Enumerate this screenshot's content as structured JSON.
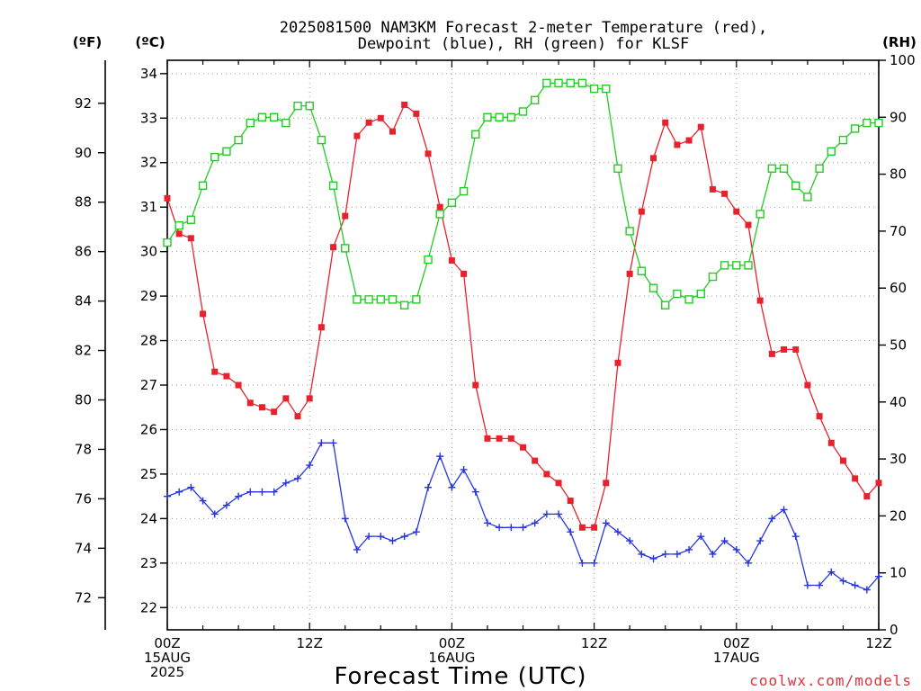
{
  "chart_data": {
    "type": "line",
    "title_lines": [
      "2025081500 NAM3KM Forecast 2-meter Temperature (red),",
      "Dewpoint (blue), RH (green) for KLSF"
    ],
    "units": {
      "fahrenheit": "(ºF)",
      "celsius": "(ºC)",
      "rh": "(RH)"
    },
    "xlabel": "Forecast Time (UTC)",
    "credit": "coolwx.com/models",
    "x_unit": "forecast hour (from 2025-08-15 00Z)",
    "xlim": [
      0,
      60
    ],
    "x_ticks": [
      {
        "x": 0,
        "lines": [
          "00Z",
          "15AUG",
          "2025"
        ]
      },
      {
        "x": 12,
        "lines": [
          "12Z"
        ]
      },
      {
        "x": 24,
        "lines": [
          "00Z",
          "16AUG"
        ]
      },
      {
        "x": 36,
        "lines": [
          "12Z"
        ]
      },
      {
        "x": 48,
        "lines": [
          "00Z",
          "17AUG"
        ]
      },
      {
        "x": 60,
        "lines": [
          "12Z"
        ]
      }
    ],
    "y_left_c": {
      "ylim": [
        21.5,
        34.3
      ],
      "ticks": [
        22,
        23,
        24,
        25,
        26,
        27,
        28,
        29,
        30,
        31,
        32,
        33,
        34
      ]
    },
    "y_left_f": {
      "ticks": [
        72,
        74,
        76,
        78,
        80,
        82,
        84,
        86,
        88,
        90,
        92
      ]
    },
    "y_right_rh": {
      "ylim": [
        0,
        100
      ],
      "ticks": [
        0,
        10,
        20,
        30,
        40,
        50,
        60,
        70,
        80,
        90,
        100
      ]
    },
    "grid": true,
    "series": [
      {
        "name": "2-meter Temperature",
        "color": "#e8222c",
        "axis": "celsius",
        "marker": "filled-square",
        "x": [
          0,
          1,
          2,
          3,
          4,
          5,
          6,
          7,
          8,
          9,
          10,
          11,
          12,
          13,
          14,
          15,
          16,
          17,
          18,
          19,
          20,
          21,
          22,
          23,
          24,
          25,
          26,
          27,
          28,
          29,
          30,
          31,
          32,
          33,
          34,
          35,
          36,
          37,
          38,
          39,
          40,
          41,
          42,
          43,
          44,
          45,
          46,
          47,
          48,
          49,
          50,
          51,
          52,
          53,
          54,
          55,
          56,
          57,
          58,
          59,
          60
        ],
        "values": [
          31.2,
          30.4,
          30.3,
          28.6,
          27.3,
          27.2,
          27.0,
          26.6,
          26.5,
          26.4,
          26.7,
          26.3,
          26.7,
          28.3,
          30.1,
          30.8,
          32.6,
          32.9,
          33.0,
          32.7,
          33.3,
          33.1,
          32.2,
          31.0,
          29.8,
          29.5,
          27.0,
          25.8,
          25.8,
          25.8,
          25.6,
          25.3,
          25.0,
          24.8,
          24.4,
          23.8,
          23.8,
          24.8,
          27.5,
          29.5,
          30.9,
          32.1,
          32.9,
          32.4,
          32.5,
          32.8,
          31.4,
          31.3,
          30.9,
          30.6,
          28.9,
          27.7,
          27.8,
          27.8,
          27.0,
          26.3,
          25.7,
          25.3,
          24.9,
          24.5,
          24.8
        ]
      },
      {
        "name": "Dewpoint",
        "color": "#2635e0",
        "axis": "celsius",
        "marker": "plus",
        "x": [
          0,
          1,
          2,
          3,
          4,
          5,
          6,
          7,
          8,
          9,
          10,
          11,
          12,
          13,
          14,
          15,
          16,
          17,
          18,
          19,
          20,
          21,
          22,
          23,
          24,
          25,
          26,
          27,
          28,
          29,
          30,
          31,
          32,
          33,
          34,
          35,
          36,
          37,
          38,
          39,
          40,
          41,
          42,
          43,
          44,
          45,
          46,
          47,
          48,
          49,
          50,
          51,
          52,
          53,
          54,
          55,
          56,
          57,
          58,
          59,
          60
        ],
        "values": [
          24.5,
          24.6,
          24.7,
          24.4,
          24.1,
          24.3,
          24.5,
          24.6,
          24.6,
          24.6,
          24.8,
          24.9,
          25.2,
          25.7,
          25.7,
          24.0,
          23.3,
          23.6,
          23.6,
          23.5,
          23.6,
          23.7,
          24.7,
          25.4,
          24.7,
          25.1,
          24.6,
          23.9,
          23.8,
          23.8,
          23.8,
          23.9,
          24.1,
          24.1,
          23.7,
          23.0,
          23.0,
          23.9,
          23.7,
          23.5,
          23.2,
          23.1,
          23.2,
          23.2,
          23.3,
          23.6,
          23.2,
          23.5,
          23.3,
          23.0,
          23.5,
          24.0,
          24.2,
          23.6,
          22.5,
          22.5,
          22.8,
          22.6,
          22.5,
          22.4,
          22.7
        ]
      },
      {
        "name": "RH",
        "color": "#22cc22",
        "axis": "rh",
        "marker": "open-square",
        "x": [
          0,
          1,
          2,
          3,
          4,
          5,
          6,
          7,
          8,
          9,
          10,
          11,
          12,
          13,
          14,
          15,
          16,
          17,
          18,
          19,
          20,
          21,
          22,
          23,
          24,
          25,
          26,
          27,
          28,
          29,
          30,
          31,
          32,
          33,
          34,
          35,
          36,
          37,
          38,
          39,
          40,
          41,
          42,
          43,
          44,
          45,
          46,
          47,
          48,
          49,
          50,
          51,
          52,
          53,
          54,
          55,
          56,
          57,
          58,
          59,
          60
        ],
        "values": [
          68,
          71,
          72,
          78,
          83,
          84,
          86,
          89,
          90,
          90,
          89,
          92,
          92,
          86,
          78,
          67,
          58,
          58,
          58,
          58,
          57,
          58,
          65,
          73,
          75,
          77,
          87,
          90,
          90,
          90,
          91,
          93,
          96,
          96,
          96,
          96,
          95,
          95,
          81,
          70,
          63,
          60,
          57,
          59,
          58,
          59,
          62,
          64,
          64,
          64,
          73,
          81,
          81,
          78,
          76,
          81,
          84,
          86,
          88,
          89,
          89
        ]
      }
    ]
  }
}
